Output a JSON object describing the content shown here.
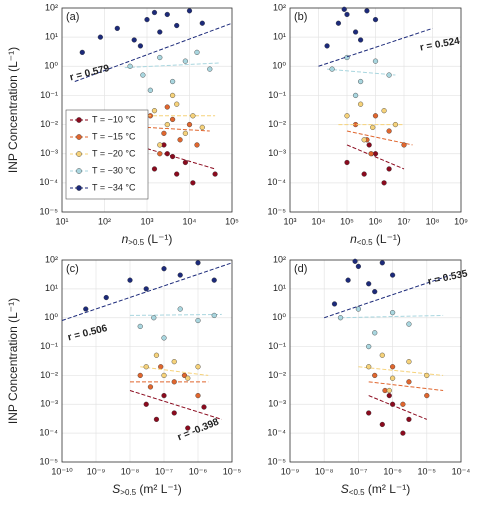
{
  "chart_data": [
    {
      "type": "scatter",
      "label": "(a)",
      "x_label": {
        "symbol": "n",
        "sub": ">0.5",
        "unit": " (L⁻¹)"
      },
      "y_label": "INP Concentration (L⁻¹)",
      "xscale": "log",
      "yscale": "log",
      "grid": true,
      "legend": "left",
      "xlim": [
        10.0,
        100000.0
      ],
      "ylim": [
        1e-05,
        100.0
      ],
      "xticks": [
        {
          "value": 10.0,
          "label": "10¹"
        },
        {
          "value": 100.0,
          "label": "10²"
        },
        {
          "value": 1000.0,
          "label": "10³"
        },
        {
          "value": 10000.0,
          "label": "10⁴"
        },
        {
          "value": 100000.0,
          "label": "10⁵"
        }
      ],
      "yticks": [
        {
          "value": 1e-05,
          "label": "10⁻⁵"
        },
        {
          "value": 0.0001,
          "label": "10⁻⁴"
        },
        {
          "value": 0.001,
          "label": "10⁻³"
        },
        {
          "value": 0.01,
          "label": "10⁻²"
        },
        {
          "value": 0.1,
          "label": "10⁻¹"
        },
        {
          "value": 1,
          "label": "10⁰"
        },
        {
          "value": 10.0,
          "label": "10¹"
        },
        {
          "value": 100.0,
          "label": "10²"
        }
      ],
      "series": [
        {
          "name": "T = −10 °C",
          "color": "#8b0a1e",
          "x": [
            1500,
            3000,
            5000,
            8000,
            2500,
            12000,
            4000,
            40000
          ],
          "values": [
            0.0003,
            0.001,
            0.0002,
            0.0005,
            0.002,
            0.0001,
            0.0008,
            0.0002
          ],
          "fit": {
            "x": [
              1000,
              40000
            ],
            "values": [
              0.0015,
              0.0003
            ]
          }
        },
        {
          "name": "T = −15 °C",
          "color": "#e0662e",
          "x": [
            1200,
            2500,
            4000,
            6000,
            10000,
            3000,
            15000,
            2000
          ],
          "values": [
            0.02,
            0.005,
            0.015,
            0.003,
            0.01,
            0.04,
            0.002,
            0.001
          ],
          "fit": {
            "x": [
              1000,
              30000
            ],
            "values": [
              0.008,
              0.006
            ]
          }
        },
        {
          "name": "T = −20 °C",
          "color": "#f6d27a",
          "x": [
            1500,
            3000,
            5000,
            8000,
            2000,
            12000,
            4000,
            20000
          ],
          "values": [
            0.03,
            0.01,
            0.05,
            0.005,
            0.002,
            0.02,
            0.1,
            0.008
          ],
          "fit": {
            "x": [
              1000,
              40000
            ],
            "values": [
              0.02,
              0.02
            ]
          }
        },
        {
          "name": "T = −30 °C",
          "color": "#a9d6df",
          "x": [
            400,
            800,
            2000,
            4000,
            8000,
            15000,
            30000,
            1200
          ],
          "values": [
            1,
            0.5,
            2,
            0.3,
            1.5,
            3,
            0.8,
            0.15
          ],
          "fit": {
            "x": [
              300,
              50000
            ],
            "values": [
              0.9,
              1.3
            ]
          }
        },
        {
          "name": "T = −34 °C",
          "color": "#1c2a7a",
          "x": [
            30,
            80,
            200,
            500,
            1000,
            2000,
            3000,
            5000,
            10000,
            20000,
            700,
            1500
          ],
          "values": [
            3,
            10,
            20,
            8,
            40,
            15,
            60,
            25,
            80,
            30,
            5,
            70
          ],
          "fit": {
            "x": [
              20,
              100000
            ],
            "values": [
              0.3,
              30
            ]
          }
        }
      ],
      "annotations": [
        {
          "text": "r = 0.579",
          "color": "#1c2a7a"
        }
      ]
    },
    {
      "type": "scatter",
      "label": "(b)",
      "x_label": {
        "symbol": "n",
        "sub": "<0.5",
        "unit": " (L⁻¹)"
      },
      "xscale": "log",
      "yscale": "log",
      "grid": true,
      "xlim": [
        1000.0,
        1000000000.0
      ],
      "ylim": [
        1e-05,
        100.0
      ],
      "xticks": [
        {
          "value": 1000.0,
          "label": "10³"
        },
        {
          "value": 10000.0,
          "label": "10⁴"
        },
        {
          "value": 100000.0,
          "label": "10⁵"
        },
        {
          "value": 1000000.0,
          "label": "10⁶"
        },
        {
          "value": 10000000.0,
          "label": "10⁷"
        },
        {
          "value": 100000000.0,
          "label": "10⁸"
        },
        {
          "value": 1000000000.0,
          "label": "10⁹"
        }
      ],
      "yticks": [
        {
          "value": 1e-05,
          "label": "10⁻⁵"
        },
        {
          "value": 0.0001,
          "label": "10⁻⁴"
        },
        {
          "value": 0.001,
          "label": "10⁻³"
        },
        {
          "value": 0.01,
          "label": "10⁻²"
        },
        {
          "value": 0.1,
          "label": "10⁻¹"
        },
        {
          "value": 1,
          "label": "10⁰"
        },
        {
          "value": 10.0,
          "label": "10¹"
        },
        {
          "value": 100.0,
          "label": "10²"
        }
      ],
      "series": [
        {
          "color": "#8b0a1e",
          "x": [
            100000.0,
            400000.0,
            1000000.0,
            3000000.0,
            2000000.0,
            600000.0
          ],
          "values": [
            0.0005,
            0.0002,
            0.001,
            0.0003,
            0.0001,
            0.002
          ],
          "fit": {
            "x": [
              100000.0,
              10000000.0
            ],
            "values": [
              0.002,
              0.0003
            ]
          }
        },
        {
          "color": "#e0662e",
          "x": [
            200000.0,
            500000.0,
            1000000.0,
            3000000.0,
            10000000.0,
            700000.0
          ],
          "values": [
            0.01,
            0.003,
            0.02,
            0.006,
            0.002,
            0.001
          ],
          "fit": {
            "x": [
              100000.0,
              20000000.0
            ],
            "values": [
              0.006,
              0.002
            ]
          }
        },
        {
          "color": "#f6d27a",
          "x": [
            100000.0,
            300000.0,
            800000.0,
            2000000.0,
            5000000.0,
            400000.0
          ],
          "values": [
            0.02,
            0.05,
            0.008,
            0.03,
            0.01,
            0.003
          ],
          "fit": {
            "x": [
              50000.0,
              10000000.0
            ],
            "values": [
              0.01,
              0.01
            ]
          }
        },
        {
          "color": "#a9d6df",
          "x": [
            30000.0,
            100000.0,
            300000.0,
            1000000.0,
            3000000.0,
            200000.0
          ],
          "values": [
            0.8,
            2,
            0.3,
            1.5,
            0.5,
            0.1
          ],
          "fit": {
            "x": [
              20000.0,
              5000000.0
            ],
            "values": [
              0.8,
              0.5
            ]
          }
        },
        {
          "color": "#1c2a7a",
          "x": [
            20000.0,
            50000.0,
            100000.0,
            200000.0,
            500000.0,
            1000000.0,
            300000.0,
            80000.0
          ],
          "values": [
            5,
            30,
            60,
            15,
            80,
            40,
            8,
            90
          ],
          "fit": {
            "x": [
              10000.0,
              100000000.0
            ],
            "values": [
              1,
              20
            ]
          }
        }
      ],
      "annotations": [
        {
          "text": "r = 0.524",
          "color": "#1c2a7a"
        }
      ]
    },
    {
      "type": "scatter",
      "label": "(c)",
      "x_label": {
        "symbol": "S",
        "sub": ">0.5",
        "unit": " (m² L⁻¹)"
      },
      "y_label": "INP Concentration (L⁻¹)",
      "xscale": "log",
      "yscale": "log",
      "grid": true,
      "xlim": [
        1e-10,
        1e-05
      ],
      "ylim": [
        1e-05,
        100.0
      ],
      "xticks": [
        {
          "value": 1e-10,
          "label": "10⁻¹⁰"
        },
        {
          "value": 1e-09,
          "label": "10⁻⁹"
        },
        {
          "value": 1e-08,
          "label": "10⁻⁸"
        },
        {
          "value": 1e-07,
          "label": "10⁻⁷"
        },
        {
          "value": 1e-06,
          "label": "10⁻⁶"
        },
        {
          "value": 1e-05,
          "label": "10⁻⁵"
        }
      ],
      "yticks": [
        {
          "value": 1e-05,
          "label": "10⁻⁵"
        },
        {
          "value": 0.0001,
          "label": "10⁻⁴"
        },
        {
          "value": 0.001,
          "label": "10⁻³"
        },
        {
          "value": 0.01,
          "label": "10⁻²"
        },
        {
          "value": 0.1,
          "label": "10⁻¹"
        },
        {
          "value": 1,
          "label": "10⁰"
        },
        {
          "value": 10.0,
          "label": "10¹"
        },
        {
          "value": 100.0,
          "label": "10²"
        }
      ],
      "series": [
        {
          "color": "#8b0a1e",
          "x": [
            3e-08,
            6e-08,
            1e-07,
            2e-07,
            5e-07,
            1.5e-06
          ],
          "values": [
            0.001,
            0.0003,
            0.002,
            0.0005,
            0.00015,
            0.0008
          ],
          "fit": {
            "x": [
              1e-08,
              5e-06
            ],
            "values": [
              0.003,
              0.0003
            ]
          }
        },
        {
          "color": "#e0662e",
          "x": [
            2e-08,
            4e-08,
            8e-08,
            2e-07,
            4e-07,
            1e-06
          ],
          "values": [
            0.01,
            0.004,
            0.02,
            0.006,
            0.01,
            0.002
          ],
          "fit": {
            "x": [
              1e-08,
              2e-06
            ],
            "values": [
              0.006,
              0.006
            ]
          }
        },
        {
          "color": "#f6d27a",
          "x": [
            3e-08,
            6e-08,
            1e-07,
            2e-07,
            5e-07,
            1e-06
          ],
          "values": [
            0.02,
            0.05,
            0.01,
            0.03,
            0.008,
            0.02
          ],
          "fit": {
            "x": [
              2e-08,
              2e-06
            ],
            "values": [
              0.02,
              0.01
            ]
          }
        },
        {
          "color": "#a9d6df",
          "x": [
            2e-08,
            5e-08,
            1e-07,
            3e-07,
            1e-06,
            3e-06
          ],
          "values": [
            0.5,
            1,
            0.2,
            2,
            0.8,
            1.2
          ],
          "fit": {
            "x": [
              1e-08,
              5e-06
            ],
            "values": [
              1.2,
              1.3
            ]
          }
        },
        {
          "color": "#1c2a7a",
          "x": [
            5e-10,
            2e-09,
            1e-08,
            3e-08,
            1e-07,
            3e-07,
            1e-06,
            3e-06
          ],
          "values": [
            2,
            5,
            20,
            10,
            50,
            30,
            80,
            20
          ],
          "fit": {
            "x": [
              1e-10,
              1e-05
            ],
            "values": [
              0.8,
              80
            ]
          }
        }
      ],
      "annotations": [
        {
          "text": "r = 0.506",
          "color": "#1c2a7a"
        },
        {
          "text": "r = -0.398",
          "color": "#a3153a"
        }
      ]
    },
    {
      "type": "scatter",
      "label": "(d)",
      "x_label": {
        "symbol": "S",
        "sub": "<0.5",
        "unit": " (m² L⁻¹)"
      },
      "xscale": "log",
      "yscale": "log",
      "grid": true,
      "xlim": [
        1e-09,
        0.0001
      ],
      "ylim": [
        1e-05,
        100.0
      ],
      "xticks": [
        {
          "value": 1e-09,
          "label": "10⁻⁹"
        },
        {
          "value": 1e-08,
          "label": "10⁻⁸"
        },
        {
          "value": 1e-07,
          "label": "10⁻⁷"
        },
        {
          "value": 1e-06,
          "label": "10⁻⁶"
        },
        {
          "value": 1e-05,
          "label": "10⁻⁵"
        },
        {
          "value": 0.0001,
          "label": "10⁻⁴"
        }
      ],
      "yticks": [
        {
          "value": 1e-05,
          "label": "10⁻⁵"
        },
        {
          "value": 0.0001,
          "label": "10⁻⁴"
        },
        {
          "value": 0.001,
          "label": "10⁻³"
        },
        {
          "value": 0.01,
          "label": "10⁻²"
        },
        {
          "value": 0.1,
          "label": "10⁻¹"
        },
        {
          "value": 1,
          "label": "10⁰"
        },
        {
          "value": 10.0,
          "label": "10¹"
        },
        {
          "value": 100.0,
          "label": "10²"
        }
      ],
      "series": [
        {
          "color": "#8b0a1e",
          "x": [
            2e-07,
            5e-07,
            1e-06,
            3e-06,
            2e-06,
            8e-07
          ],
          "values": [
            0.0005,
            0.0002,
            0.001,
            0.0003,
            0.0001,
            0.002
          ],
          "fit": {
            "x": [
              2e-07,
              1e-05
            ],
            "values": [
              0.002,
              0.0003
            ]
          }
        },
        {
          "color": "#e0662e",
          "x": [
            3e-07,
            6e-07,
            1e-06,
            3e-06,
            1e-05,
            2e-06
          ],
          "values": [
            0.01,
            0.003,
            0.02,
            0.006,
            0.002,
            0.001
          ],
          "fit": {
            "x": [
              2e-07,
              3e-05
            ],
            "values": [
              0.006,
              0.003
            ]
          }
        },
        {
          "color": "#f6d27a",
          "x": [
            2e-07,
            5e-07,
            1e-06,
            3e-06,
            1e-05,
            8e-07
          ],
          "values": [
            0.02,
            0.05,
            0.008,
            0.03,
            0.01,
            0.003
          ],
          "fit": {
            "x": [
              1e-07,
              3e-05
            ],
            "values": [
              0.02,
              0.01
            ]
          }
        },
        {
          "color": "#a9d6df",
          "x": [
            3e-08,
            1e-07,
            3e-07,
            1e-06,
            3e-06,
            2e-07
          ],
          "values": [
            1,
            2,
            0.3,
            1.5,
            0.6,
            0.1
          ],
          "fit": {
            "x": [
              3e-08,
              3e-05
            ],
            "values": [
              1,
              1.2
            ]
          }
        },
        {
          "color": "#1c2a7a",
          "x": [
            2e-08,
            5e-08,
            1e-07,
            2e-07,
            5e-07,
            1e-06,
            3e-07,
            8e-08
          ],
          "values": [
            3,
            20,
            60,
            15,
            80,
            30,
            8,
            90
          ],
          "fit": {
            "x": [
              1e-08,
              5e-05
            ],
            "values": [
              1,
              30
            ]
          }
        }
      ],
      "annotations": [
        {
          "text": "r = 0.535",
          "color": "#1c2a7a"
        }
      ]
    }
  ]
}
